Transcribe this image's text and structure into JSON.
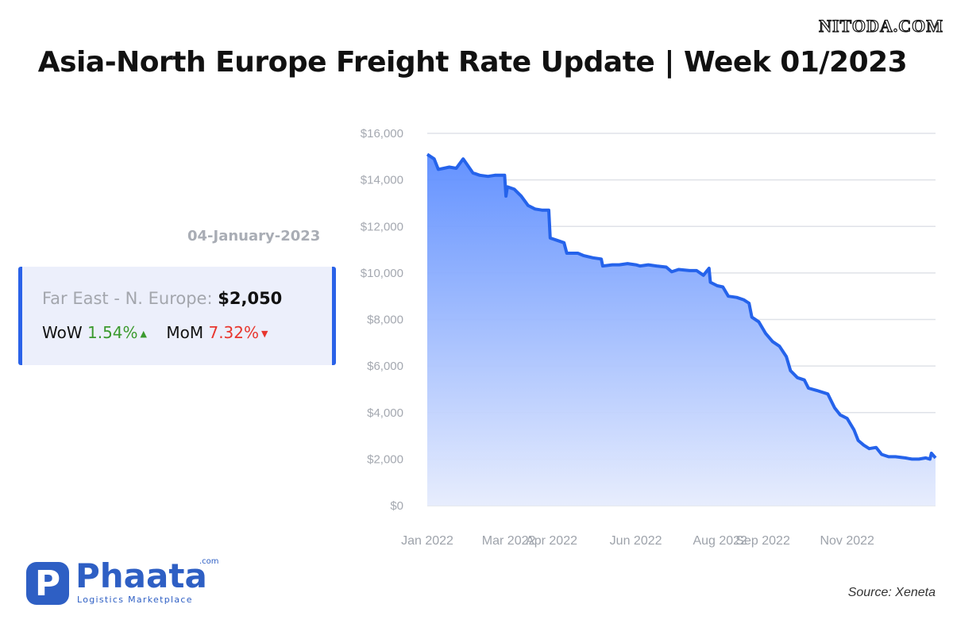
{
  "watermark": "NITODA.COM",
  "header": {
    "title": "Asia-North Europe Freight Rate Update | Week 01/2023"
  },
  "summary": {
    "date": "04-January-2023",
    "route_label": "Far East - N. Europe:",
    "price": "$2,050",
    "wow_label": "WoW",
    "wow_value": "1.54%",
    "wow_direction": "up",
    "mom_label": "MoM",
    "mom_value": "7.32%",
    "mom_direction": "down"
  },
  "colors": {
    "accent": "#2a62e8",
    "line": "#2563eb",
    "up": "#3b9a2e",
    "down": "#e8362e",
    "logo": "#2e5fc4"
  },
  "chart_data": {
    "type": "area",
    "title": "",
    "xlabel": "",
    "ylabel": "",
    "ylim": [
      0,
      16000
    ],
    "yticks": [
      0,
      2000,
      4000,
      6000,
      8000,
      10000,
      12000,
      14000,
      16000
    ],
    "ytick_labels": [
      "$0",
      "$2,000",
      "$4,000",
      "$6,000",
      "$8,000",
      "$10,000",
      "$12,000",
      "$14,000",
      "$16,000"
    ],
    "xlim": [
      "2022-01-01",
      "2023-01-04"
    ],
    "xtick_labels": [
      {
        "label": "Jan 2022",
        "date": "2022-01-01"
      },
      {
        "label": "Mar 2022",
        "date": "2022-03-01"
      },
      {
        "label": "Apr 2022",
        "date": "2022-04-01"
      },
      {
        "label": "Jun 2022",
        "date": "2022-06-01"
      },
      {
        "label": "Aug 2022",
        "date": "2022-08-01"
      },
      {
        "label": "Sep 2022",
        "date": "2022-09-01"
      },
      {
        "label": "Nov 2022",
        "date": "2022-11-01"
      }
    ],
    "grid": true,
    "series": [
      {
        "name": "",
        "points": [
          [
            "2022-01-01",
            15100
          ],
          [
            "2022-01-06",
            14900
          ],
          [
            "2022-01-09",
            14450
          ],
          [
            "2022-01-13",
            14500
          ],
          [
            "2022-01-17",
            14550
          ],
          [
            "2022-01-22",
            14500
          ],
          [
            "2022-01-27",
            14900
          ],
          [
            "2022-01-30",
            14650
          ],
          [
            "2022-02-03",
            14300
          ],
          [
            "2022-02-08",
            14200
          ],
          [
            "2022-02-14",
            14150
          ],
          [
            "2022-02-19",
            14200
          ],
          [
            "2022-02-26",
            14200
          ],
          [
            "2022-02-27",
            13300
          ],
          [
            "2022-02-28",
            13700
          ],
          [
            "2022-03-05",
            13600
          ],
          [
            "2022-03-10",
            13300
          ],
          [
            "2022-03-15",
            12900
          ],
          [
            "2022-03-20",
            12750
          ],
          [
            "2022-03-25",
            12700
          ],
          [
            "2022-03-30",
            12700
          ],
          [
            "2022-03-31",
            11500
          ],
          [
            "2022-04-05",
            11400
          ],
          [
            "2022-04-10",
            11300
          ],
          [
            "2022-04-12",
            10850
          ],
          [
            "2022-04-20",
            10850
          ],
          [
            "2022-04-24",
            10750
          ],
          [
            "2022-05-01",
            10650
          ],
          [
            "2022-05-07",
            10600
          ],
          [
            "2022-05-08",
            10300
          ],
          [
            "2022-05-15",
            10350
          ],
          [
            "2022-05-20",
            10350
          ],
          [
            "2022-05-26",
            10400
          ],
          [
            "2022-06-01",
            10350
          ],
          [
            "2022-06-04",
            10300
          ],
          [
            "2022-06-10",
            10350
          ],
          [
            "2022-06-16",
            10300
          ],
          [
            "2022-06-23",
            10250
          ],
          [
            "2022-06-27",
            10050
          ],
          [
            "2022-07-02",
            10150
          ],
          [
            "2022-07-10",
            10100
          ],
          [
            "2022-07-15",
            10100
          ],
          [
            "2022-07-20",
            9900
          ],
          [
            "2022-07-24",
            10200
          ],
          [
            "2022-07-25",
            9600
          ],
          [
            "2022-07-30",
            9450
          ],
          [
            "2022-08-03",
            9400
          ],
          [
            "2022-08-07",
            9000
          ],
          [
            "2022-08-13",
            8950
          ],
          [
            "2022-08-18",
            8850
          ],
          [
            "2022-08-22",
            8700
          ],
          [
            "2022-08-24",
            8100
          ],
          [
            "2022-08-29",
            7900
          ],
          [
            "2022-09-03",
            7400
          ],
          [
            "2022-09-08",
            7050
          ],
          [
            "2022-09-13",
            6850
          ],
          [
            "2022-09-18",
            6400
          ],
          [
            "2022-09-21",
            5800
          ],
          [
            "2022-09-26",
            5500
          ],
          [
            "2022-10-01",
            5400
          ],
          [
            "2022-10-04",
            5050
          ],
          [
            "2022-10-10",
            4950
          ],
          [
            "2022-10-18",
            4800
          ],
          [
            "2022-10-23",
            4200
          ],
          [
            "2022-10-27",
            3900
          ],
          [
            "2022-11-01",
            3750
          ],
          [
            "2022-11-06",
            3250
          ],
          [
            "2022-11-09",
            2800
          ],
          [
            "2022-11-13",
            2600
          ],
          [
            "2022-11-17",
            2450
          ],
          [
            "2022-11-22",
            2500
          ],
          [
            "2022-11-26",
            2200
          ],
          [
            "2022-12-01",
            2100
          ],
          [
            "2022-12-06",
            2100
          ],
          [
            "2022-12-13",
            2050
          ],
          [
            "2022-12-18",
            2000
          ],
          [
            "2022-12-23",
            2000
          ],
          [
            "2022-12-28",
            2050
          ],
          [
            "2022-12-31",
            2000
          ],
          [
            "2023-01-01",
            2250
          ],
          [
            "2023-01-04",
            2050
          ]
        ]
      }
    ]
  },
  "source": "Source: Xeneta",
  "logo": {
    "name": "Phaata",
    "mark_letter": "P",
    "suffix": ".com",
    "tagline": "Logistics Marketplace"
  }
}
